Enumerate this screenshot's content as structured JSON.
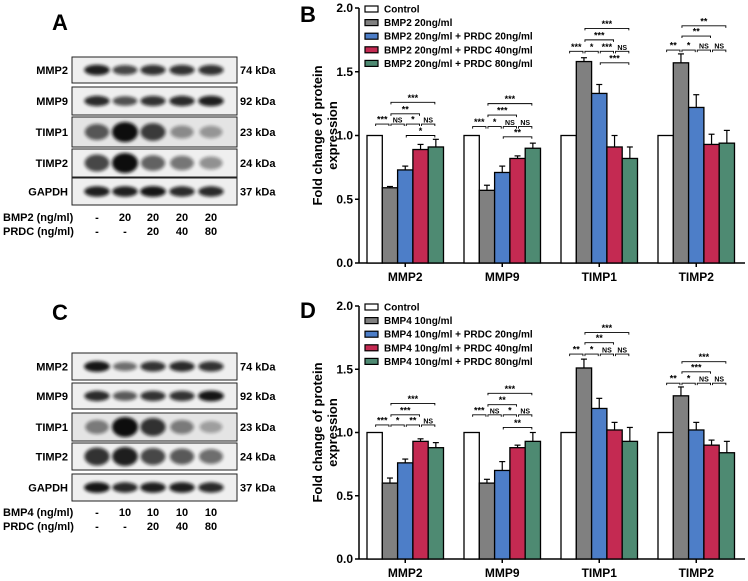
{
  "blots": [
    {
      "letter": "A",
      "proteins": [
        {
          "name": "MMP2",
          "kda": "74 kDa",
          "intensity": [
            0.9,
            0.7,
            0.8,
            0.8,
            0.8
          ]
        },
        {
          "name": "MMP9",
          "kda": "92 kDa",
          "intensity": [
            0.85,
            0.65,
            0.8,
            0.85,
            0.9
          ]
        },
        {
          "name": "TIMP1",
          "kda": "23 kDa",
          "intensity": [
            0.6,
            1.0,
            0.75,
            0.3,
            0.25
          ]
        },
        {
          "name": "TIMP2",
          "kda": "24 kDa",
          "intensity": [
            0.7,
            1.0,
            0.55,
            0.45,
            0.3
          ]
        },
        {
          "name": "GAPDH",
          "kda": "37 kDa",
          "intensity": [
            0.9,
            0.9,
            0.95,
            0.85,
            0.85
          ]
        }
      ],
      "treatments": [
        {
          "label": "BMP2 (ng/ml)",
          "values": [
            "-",
            "20",
            "20",
            "20",
            "20"
          ]
        },
        {
          "label": "PRDC (ng/ml)",
          "values": [
            "-",
            "-",
            "20",
            "40",
            "80"
          ]
        }
      ]
    },
    {
      "letter": "C",
      "proteins": [
        {
          "name": "MMP2",
          "kda": "74 kDa",
          "intensity": [
            0.95,
            0.5,
            0.8,
            0.85,
            0.8
          ]
        },
        {
          "name": "MMP9",
          "kda": "92 kDa",
          "intensity": [
            0.85,
            0.6,
            0.8,
            0.8,
            0.95
          ]
        },
        {
          "name": "TIMP1",
          "kda": "23 kDa",
          "intensity": [
            0.4,
            1.0,
            0.8,
            0.4,
            0.2
          ]
        },
        {
          "name": "TIMP2",
          "kda": "24 kDa",
          "intensity": [
            0.8,
            0.9,
            0.7,
            0.6,
            0.5
          ]
        },
        {
          "name": "GAPDH",
          "kda": "37 kDa",
          "intensity": [
            0.95,
            0.85,
            0.9,
            0.9,
            0.85
          ]
        }
      ],
      "treatments": [
        {
          "label": "BMP4 (ng/ml)",
          "values": [
            "-",
            "10",
            "10",
            "10",
            "10"
          ]
        },
        {
          "label": "PRDC (ng/ml)",
          "values": [
            "-",
            "-",
            "20",
            "40",
            "80"
          ]
        }
      ]
    }
  ],
  "chart_data": [
    {
      "letter": "B",
      "type": "bar",
      "ylabel": [
        "Fold change of  protein",
        "expression"
      ],
      "ylim": [
        0,
        2.0
      ],
      "yticks": [
        "0.0",
        "0.5",
        "1.0",
        "1.5",
        "2.0"
      ],
      "categories": [
        "MMP2",
        "MMP9",
        "TIMP1",
        "TIMP2"
      ],
      "legend_position": "top-left",
      "series": [
        {
          "name": "Control",
          "color": "#ffffff",
          "values": [
            1.0,
            1.0,
            1.0,
            1.0
          ],
          "errors": [
            0,
            0,
            0,
            0
          ]
        },
        {
          "name": "BMP2 20ng/ml",
          "color": "#808080",
          "values": [
            0.59,
            0.57,
            1.58,
            1.57
          ],
          "errors": [
            0.01,
            0.04,
            0.03,
            0.07
          ]
        },
        {
          "name": "BMP2 20ng/ml + PRDC 20ng/ml",
          "color": "#4d7ec8",
          "values": [
            0.73,
            0.71,
            1.33,
            1.22
          ],
          "errors": [
            0.03,
            0.05,
            0.07,
            0.1
          ]
        },
        {
          "name": "BMP2 20ng/ml + PRDC 40ng/ml",
          "color": "#c42a52",
          "values": [
            0.89,
            0.82,
            0.91,
            0.93
          ],
          "errors": [
            0.04,
            0.02,
            0.09,
            0.08
          ]
        },
        {
          "name": "BMP2 20ng/ml + PRDC 80ng/ml",
          "color": "#4e8a72",
          "values": [
            0.91,
            0.9,
            0.82,
            0.94
          ],
          "errors": [
            0.06,
            0.04,
            0.09,
            0.1
          ]
        }
      ],
      "significance": [
        [
          {
            "text": "***",
            "from": 0,
            "to": 1,
            "y": 1.09
          },
          {
            "text": "NS",
            "from": 1,
            "to": 2,
            "y": 1.09
          },
          {
            "text": "*",
            "from": 2,
            "to": 3,
            "y": 1.09
          },
          {
            "text": "NS",
            "from": 3,
            "to": 4,
            "y": 1.09
          },
          {
            "text": "**",
            "from": 1,
            "to": 3,
            "y": 1.17
          },
          {
            "text": "***",
            "from": 1,
            "to": 4,
            "y": 1.26
          },
          {
            "text": "*",
            "from": 2,
            "to": 4,
            "y": 1.0
          }
        ],
        [
          {
            "text": "***",
            "from": 0,
            "to": 1,
            "y": 1.07
          },
          {
            "text": "*",
            "from": 1,
            "to": 2,
            "y": 1.07
          },
          {
            "text": "NS",
            "from": 2,
            "to": 3,
            "y": 1.07
          },
          {
            "text": "NS",
            "from": 3,
            "to": 4,
            "y": 1.07
          },
          {
            "text": "***",
            "from": 1,
            "to": 3,
            "y": 1.16
          },
          {
            "text": "***",
            "from": 1,
            "to": 4,
            "y": 1.25
          },
          {
            "text": "**",
            "from": 2,
            "to": 4,
            "y": 0.99
          }
        ],
        [
          {
            "text": "***",
            "from": 0,
            "to": 1,
            "y": 1.66
          },
          {
            "text": "*",
            "from": 1,
            "to": 2,
            "y": 1.66
          },
          {
            "text": "***",
            "from": 2,
            "to": 3,
            "y": 1.66
          },
          {
            "text": "NS",
            "from": 3,
            "to": 4,
            "y": 1.66
          },
          {
            "text": "***",
            "from": 1,
            "to": 3,
            "y": 1.75
          },
          {
            "text": "***",
            "from": 1,
            "to": 4,
            "y": 1.84
          },
          {
            "text": "***",
            "from": 2,
            "to": 4,
            "y": 1.57
          }
        ],
        [
          {
            "text": "**",
            "from": 0,
            "to": 1,
            "y": 1.67
          },
          {
            "text": "*",
            "from": 1,
            "to": 2,
            "y": 1.67
          },
          {
            "text": "NS",
            "from": 2,
            "to": 3,
            "y": 1.67
          },
          {
            "text": "NS",
            "from": 3,
            "to": 4,
            "y": 1.67
          },
          {
            "text": "**",
            "from": 1,
            "to": 3,
            "y": 1.78
          },
          {
            "text": "**",
            "from": 1,
            "to": 4,
            "y": 1.86
          }
        ]
      ]
    },
    {
      "letter": "D",
      "type": "bar",
      "ylabel": [
        "Fold change of  protein",
        "expression"
      ],
      "ylim": [
        0,
        2.0
      ],
      "yticks": [
        "0.0",
        "0.5",
        "1.0",
        "1.5",
        "2.0"
      ],
      "categories": [
        "MMP2",
        "MMP9",
        "TIMP1",
        "TIMP2"
      ],
      "legend_position": "top-left",
      "series": [
        {
          "name": "Control",
          "color": "#ffffff",
          "values": [
            1.0,
            1.0,
            1.0,
            1.0
          ],
          "errors": [
            0,
            0,
            0,
            0
          ]
        },
        {
          "name": "BMP4 10ng/ml",
          "color": "#808080",
          "values": [
            0.6,
            0.6,
            1.51,
            1.29
          ],
          "errors": [
            0.04,
            0.03,
            0.07,
            0.07
          ]
        },
        {
          "name": "BMP4 10ng/ml + PRDC 20ng/ml",
          "color": "#4d7ec8",
          "values": [
            0.76,
            0.7,
            1.19,
            1.02
          ],
          "errors": [
            0.03,
            0.07,
            0.08,
            0.06
          ]
        },
        {
          "name": "BMP4 10ng/ml + PRDC 40ng/ml",
          "color": "#c42a52",
          "values": [
            0.93,
            0.88,
            1.02,
            0.9
          ],
          "errors": [
            0.02,
            0.02,
            0.06,
            0.04
          ]
        },
        {
          "name": "BMP4 10ng/ml + PRDC 80ng/ml",
          "color": "#4e8a72",
          "values": [
            0.88,
            0.93,
            0.93,
            0.84
          ],
          "errors": [
            0.04,
            0.07,
            0.11,
            0.09
          ]
        }
      ],
      "significance": [
        [
          {
            "text": "***",
            "from": 0,
            "to": 1,
            "y": 1.06
          },
          {
            "text": "*",
            "from": 1,
            "to": 2,
            "y": 1.06
          },
          {
            "text": "**",
            "from": 2,
            "to": 3,
            "y": 1.06
          },
          {
            "text": "NS",
            "from": 3,
            "to": 4,
            "y": 1.06
          },
          {
            "text": "***",
            "from": 1,
            "to": 3,
            "y": 1.14
          },
          {
            "text": "***",
            "from": 1,
            "to": 4,
            "y": 1.23
          }
        ],
        [
          {
            "text": "***",
            "from": 0,
            "to": 1,
            "y": 1.14
          },
          {
            "text": "NS",
            "from": 1,
            "to": 2,
            "y": 1.14
          },
          {
            "text": "*",
            "from": 2,
            "to": 3,
            "y": 1.14
          },
          {
            "text": "NS",
            "from": 3,
            "to": 4,
            "y": 1.14
          },
          {
            "text": "**",
            "from": 1,
            "to": 3,
            "y": 1.22
          },
          {
            "text": "***",
            "from": 1,
            "to": 4,
            "y": 1.31
          },
          {
            "text": "**",
            "from": 2,
            "to": 4,
            "y": 1.04
          }
        ],
        [
          {
            "text": "**",
            "from": 0,
            "to": 1,
            "y": 1.62
          },
          {
            "text": "*",
            "from": 1,
            "to": 2,
            "y": 1.62
          },
          {
            "text": "NS",
            "from": 2,
            "to": 3,
            "y": 1.62
          },
          {
            "text": "NS",
            "from": 3,
            "to": 4,
            "y": 1.62
          },
          {
            "text": "**",
            "from": 1,
            "to": 3,
            "y": 1.71
          },
          {
            "text": "***",
            "from": 1,
            "to": 4,
            "y": 1.79
          }
        ],
        [
          {
            "text": "**",
            "from": 0,
            "to": 1,
            "y": 1.39
          },
          {
            "text": "*",
            "from": 1,
            "to": 2,
            "y": 1.39
          },
          {
            "text": "NS",
            "from": 2,
            "to": 3,
            "y": 1.39
          },
          {
            "text": "NS",
            "from": 3,
            "to": 4,
            "y": 1.39
          },
          {
            "text": "***",
            "from": 1,
            "to": 3,
            "y": 1.48
          },
          {
            "text": "***",
            "from": 1,
            "to": 4,
            "y": 1.56
          }
        ]
      ]
    }
  ]
}
